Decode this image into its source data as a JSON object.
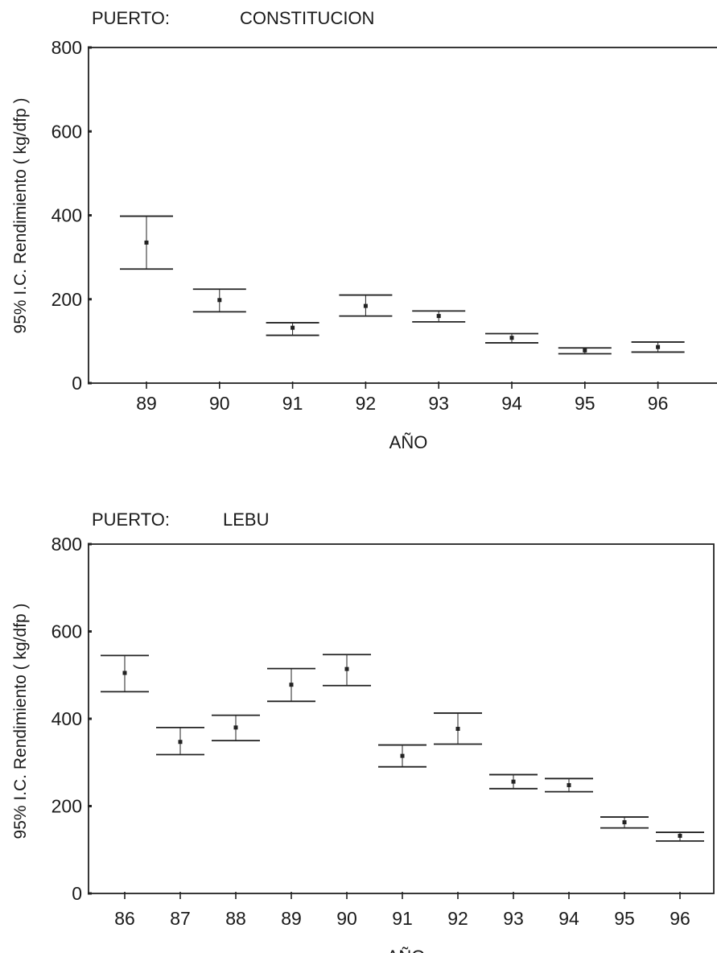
{
  "chart_data": [
    {
      "type": "errorbar",
      "header": {
        "label": "PUERTO:",
        "value": "CONSTITUCION"
      },
      "xlabel": "AÑO",
      "ylabel": "95% I.C.  Rendimiento ( kg/dfp )",
      "ylim": [
        0,
        800
      ],
      "yticks": [
        "0",
        "200",
        "400",
        "600",
        "800"
      ],
      "grid": false,
      "categories": [
        "89",
        "90",
        "91",
        "92",
        "93",
        "94",
        "95",
        "96"
      ],
      "mean": [
        335,
        198,
        132,
        184,
        160,
        108,
        78,
        86
      ],
      "lower": [
        272,
        170,
        114,
        160,
        146,
        96,
        70,
        74
      ],
      "upper": [
        398,
        224,
        144,
        210,
        172,
        118,
        84,
        98
      ]
    },
    {
      "type": "errorbar",
      "header": {
        "label": "PUERTO:",
        "value": "LEBU"
      },
      "xlabel": "AÑO",
      "ylabel": "95% I.C.  Rendimiento ( kg/dfp )",
      "ylim": [
        0,
        800
      ],
      "yticks": [
        "0",
        "200",
        "400",
        "600",
        "800"
      ],
      "grid": false,
      "categories": [
        "86",
        "87",
        "88",
        "89",
        "90",
        "91",
        "92",
        "93",
        "94",
        "95",
        "96"
      ],
      "mean": [
        505,
        347,
        380,
        478,
        514,
        315,
        377,
        256,
        248,
        163,
        132
      ],
      "lower": [
        462,
        318,
        350,
        440,
        476,
        290,
        342,
        240,
        233,
        150,
        120
      ],
      "upper": [
        545,
        380,
        408,
        515,
        547,
        340,
        413,
        272,
        263,
        175,
        140
      ]
    }
  ]
}
